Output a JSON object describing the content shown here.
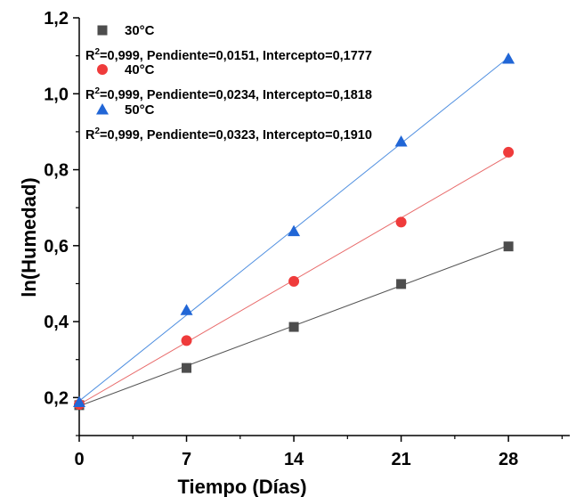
{
  "chart_data": {
    "type": "scatter",
    "xlabel": "Tiempo (Días)",
    "ylabel": "ln(Humedad)",
    "xlim": [
      0,
      32
    ],
    "ylim": [
      0.1,
      1.2
    ],
    "xticks": [
      0,
      7,
      14,
      21,
      28
    ],
    "xtick_labels": [
      "0",
      "7",
      "14",
      "21",
      "28"
    ],
    "yticks": [
      0.2,
      0.4,
      0.6,
      0.8,
      1.0,
      1.2
    ],
    "ytick_labels": [
      "0,2",
      "0,4",
      "0,6",
      "0,8",
      "1,0",
      "1,2"
    ],
    "legend_position": "top-left",
    "grid": false,
    "series": [
      {
        "name": "30°C",
        "marker": "square",
        "color": "#4d4d4d",
        "fit_color": "#555555",
        "x": [
          0,
          7,
          14,
          21,
          28
        ],
        "y": [
          0.18,
          0.278,
          0.386,
          0.499,
          0.598
        ],
        "fit": {
          "slope": 0.0151,
          "intercept": 0.1777
        },
        "stats_prefix": "R",
        "stats_sup": "2",
        "stats_text": "=0,999, Pendiente=0,0151, Intercepto=0,1777"
      },
      {
        "name": "40°C",
        "marker": "circle",
        "color": "#ef3b3b",
        "fit_color": "#e86a6a",
        "x": [
          0,
          7,
          14,
          21,
          28
        ],
        "y": [
          0.182,
          0.35,
          0.506,
          0.662,
          0.846
        ],
        "fit": {
          "slope": 0.0234,
          "intercept": 0.1818
        },
        "stats_prefix": "R",
        "stats_sup": "2",
        "stats_text": "=0,999, Pendiente=0,0234, Intercepto=0,1818"
      },
      {
        "name": "50°C",
        "marker": "triangle",
        "color": "#2166d6",
        "fit_color": "#4f8fe0",
        "x": [
          0,
          7,
          14,
          21,
          28
        ],
        "y": [
          0.188,
          0.43,
          0.638,
          0.874,
          1.092
        ],
        "fit": {
          "slope": 0.0323,
          "intercept": 0.191
        },
        "stats_prefix": "R",
        "stats_sup": "2",
        "stats_text": "=0,999, Pendiente=0,0323, Intercepto=0,1910"
      }
    ]
  }
}
